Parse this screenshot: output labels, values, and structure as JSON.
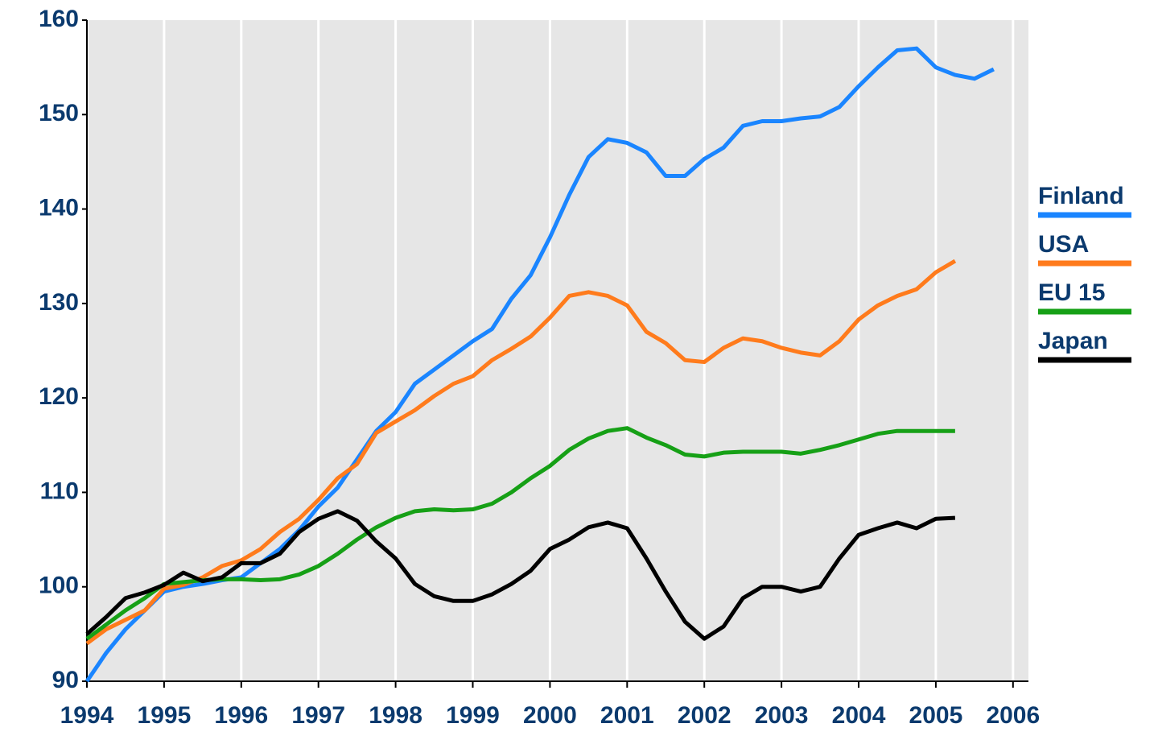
{
  "chart_data": {
    "type": "line",
    "x": [
      1994,
      1994.25,
      1994.5,
      1994.75,
      1995,
      1995.25,
      1995.5,
      1995.75,
      1996,
      1996.25,
      1996.5,
      1996.75,
      1997,
      1997.25,
      1997.5,
      1997.75,
      1998,
      1998.25,
      1998.5,
      1998.75,
      1999,
      1999.25,
      1999.5,
      1999.75,
      2000,
      2000.25,
      2000.5,
      2000.75,
      2001,
      2001.25,
      2001.5,
      2001.75,
      2002,
      2002.25,
      2002.5,
      2002.75,
      2003,
      2003.25,
      2003.5,
      2003.75,
      2004,
      2004.25,
      2004.5,
      2004.75,
      2005,
      2005.25,
      2005.5,
      2005.75
    ],
    "series": [
      {
        "name": "Finland",
        "color": "#1a85ff",
        "values": [
          90,
          93,
          95.5,
          97.5,
          99.5,
          100,
          100.3,
          100.7,
          101,
          102.5,
          104,
          106,
          108.5,
          110.5,
          113.5,
          116.5,
          118.5,
          121.5,
          123,
          124.5,
          126,
          127.3,
          130.5,
          133,
          137,
          141.5,
          145.5,
          147.4,
          147,
          146,
          143.5,
          143.5,
          145.3,
          146.5,
          148.8,
          149.3,
          149.3,
          149.6,
          149.8,
          150.8,
          153,
          155,
          156.8,
          157,
          155,
          154.2,
          153.8,
          154.8
        ]
      },
      {
        "name": "USA",
        "color": "#ff7b1c",
        "values": [
          94,
          95.5,
          96.5,
          97.5,
          99.8,
          100.2,
          101,
          102.2,
          102.8,
          104,
          105.8,
          107.2,
          109.2,
          111.5,
          113,
          116.3,
          117.5,
          118.7,
          120.2,
          121.5,
          122.3,
          124,
          125.2,
          126.5,
          128.5,
          130.8,
          131.2,
          130.8,
          129.8,
          127,
          125.8,
          124,
          123.8,
          125.3,
          126.3,
          126,
          125.3,
          124.8,
          124.5,
          126,
          128.3,
          129.8,
          130.8,
          131.5,
          133.3,
          134.5,
          null,
          null
        ]
      },
      {
        "name": "EU 15",
        "color": "#16a016",
        "values": [
          94.5,
          96,
          97.5,
          98.8,
          100.3,
          100.5,
          100.7,
          100.8,
          100.8,
          100.7,
          100.8,
          101.3,
          102.2,
          103.5,
          105,
          106.3,
          107.3,
          108,
          108.2,
          108.1,
          108.2,
          108.8,
          110,
          111.5,
          112.8,
          114.5,
          115.7,
          116.5,
          116.8,
          115.8,
          115,
          114,
          113.8,
          114.2,
          114.3,
          114.3,
          114.3,
          114.1,
          114.5,
          115,
          115.6,
          116.2,
          116.5,
          116.5,
          116.5,
          116.5,
          null,
          null
        ]
      },
      {
        "name": "Japan",
        "color": "#000000",
        "values": [
          95,
          96.8,
          98.8,
          99.4,
          100.2,
          101.5,
          100.6,
          101,
          102.5,
          102.5,
          103.5,
          105.8,
          107.2,
          108,
          107,
          104.8,
          103,
          100.3,
          99,
          98.5,
          98.5,
          99.2,
          100.3,
          101.7,
          104,
          105,
          106.3,
          106.8,
          106.2,
          103,
          99.5,
          96.3,
          94.5,
          95.8,
          98.8,
          100,
          100,
          99.5,
          100,
          103,
          105.5,
          106.2,
          106.8,
          106.2,
          107.2,
          107.3,
          null,
          null
        ]
      }
    ],
    "xlim": [
      1994,
      2006.2
    ],
    "xticks": [
      1994,
      1995,
      1996,
      1997,
      1998,
      1999,
      2000,
      2001,
      2002,
      2003,
      2004,
      2005,
      2006
    ],
    "ylim": [
      90,
      160
    ],
    "yticks": [
      90,
      100,
      110,
      120,
      130,
      140,
      150,
      160
    ],
    "grid": "x",
    "legend": "right"
  }
}
